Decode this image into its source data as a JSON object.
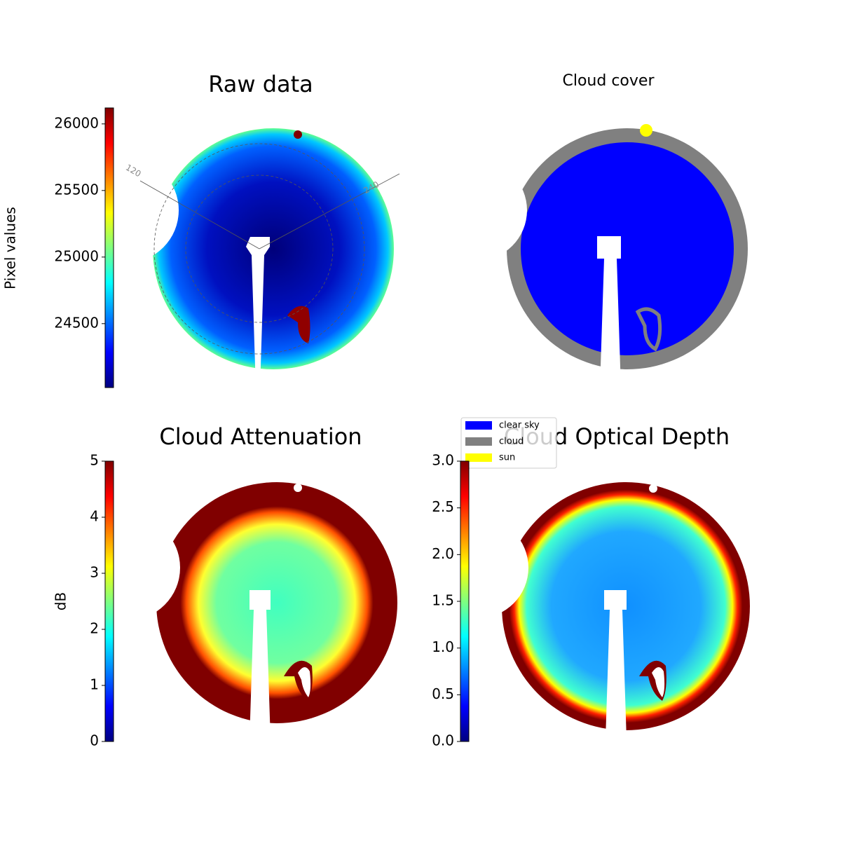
{
  "chart_data": [
    {
      "type": "image",
      "title": "Raw data",
      "colorbar_label": "Pixel values",
      "clim": [
        24020,
        26120
      ],
      "cticks": [
        24500,
        25000,
        25500,
        26000
      ],
      "colormap": "jet",
      "annotations": [
        "120",
        "240"
      ]
    },
    {
      "type": "image",
      "title": "Cloud cover",
      "series": [
        {
          "name": "clear sky",
          "color": "#0000ff"
        },
        {
          "name": "cloud",
          "color": "#808080"
        },
        {
          "name": "sun",
          "color": "#ffff00"
        }
      ]
    },
    {
      "type": "image",
      "title": "Cloud Attenuation",
      "colorbar_label": "dB",
      "clim": [
        0,
        5
      ],
      "cticks": [
        0,
        1,
        2,
        3,
        4,
        5
      ],
      "colormap": "jet"
    },
    {
      "type": "image",
      "title": "Cloud Optical Depth",
      "clim": [
        0,
        3
      ],
      "cticks": [
        {
          "value": 0,
          "label": "0.0"
        },
        {
          "value": 0.5,
          "label": "0.5"
        },
        {
          "value": 1,
          "label": "1.0"
        },
        {
          "value": 1.5,
          "label": "1.5"
        },
        {
          "value": 2,
          "label": "2.0"
        },
        {
          "value": 2.5,
          "label": "2.5"
        },
        {
          "value": 3,
          "label": "3.0"
        }
      ],
      "colormap": "jet"
    }
  ]
}
